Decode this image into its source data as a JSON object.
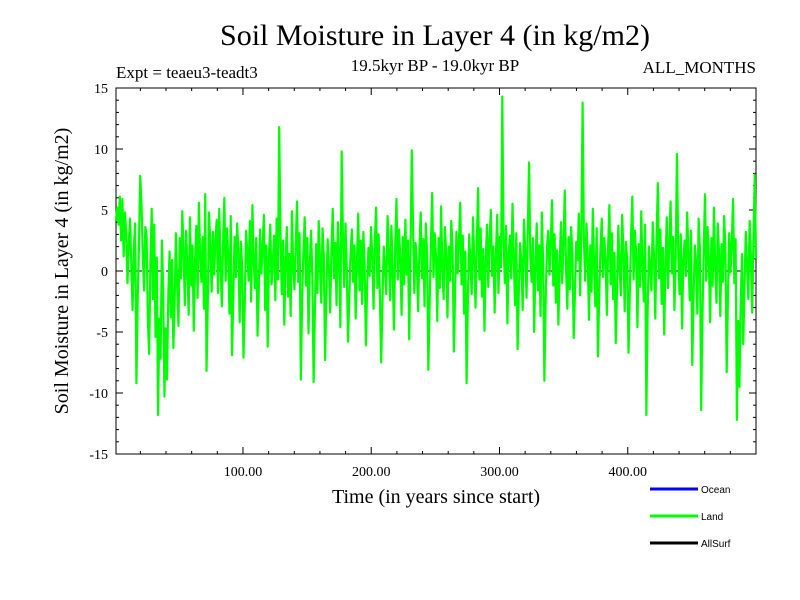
{
  "chart_data": {
    "type": "line",
    "title": "Soil Moisture in Layer 4 (in kg/m2)",
    "subtitle_left": "Expt = teaeu3-teadt3",
    "subtitle_center": "19.5kyr BP - 19.0kyr BP",
    "subtitle_right": "ALL_MONTHS",
    "xlabel": "Time (in years since start)",
    "ylabel": "Soil Moisture in Layer 4 (in kg/m2)",
    "xlim": [
      1,
      500
    ],
    "ylim": [
      -15,
      15
    ],
    "x_ticks": [
      100,
      200,
      300,
      400
    ],
    "x_tick_labels": [
      "100.00",
      "200.00",
      "300.00",
      "400.00"
    ],
    "y_ticks": [
      -15,
      -10,
      -5,
      0,
      5,
      10,
      15
    ],
    "y_tick_labels": [
      "-15",
      "-10",
      "-5",
      "0",
      "5",
      "10",
      "15"
    ],
    "zero_line": true,
    "series": [
      {
        "name": "Land",
        "color": "#00ff00",
        "values": [
          4.1,
          5.2,
          3.8,
          6.1,
          2.5,
          5.9,
          1.2,
          4.8,
          3.1,
          -1.0,
          2.2,
          4.3,
          0.5,
          -3.2,
          1.8,
          3.9,
          -9.2,
          -2.5,
          2.1,
          7.8,
          5.5,
          1.3,
          -1.6,
          3.6,
          2.9,
          -4.1,
          -6.8,
          0.7,
          5.1,
          -2.3,
          3.8,
          -5.4,
          1.1,
          -11.8,
          -3.9,
          -7.2,
          2.5,
          -1.5,
          -10.3,
          -4.7,
          -8.9,
          -2.1,
          1.6,
          -3.8,
          0.9,
          -6.3,
          -2.4,
          3.1,
          -1.3,
          -4.5,
          2.7,
          -0.6,
          4.9,
          1.5,
          -2.8,
          3.3,
          0.2,
          -3.6,
          4.4,
          -1.2,
          2.1,
          -4.9,
          0.8,
          3.7,
          -2.2,
          5.6,
          1.4,
          -0.9,
          2.8,
          -3.1,
          6.3,
          -8.2,
          -2.6,
          4.8,
          1.9,
          -1.7,
          3.2,
          -0.3,
          2.6,
          4.2,
          -1.8,
          5.1,
          0.4,
          -2.9,
          2.3,
          6.0,
          -0.8,
          3.5,
          1.2,
          -3.5,
          4.5,
          -6.9,
          -2.1,
          2.8,
          -0.5,
          3.9,
          1.7,
          -4.2,
          2.4,
          0.1,
          -7.1,
          -2.7,
          3.3,
          1.5,
          -0.8,
          4.1,
          -2.5,
          5.4,
          0.9,
          -1.4,
          2.7,
          -5.3,
          -1.6,
          3.4,
          -0.2,
          1.9,
          4.6,
          -3.2,
          2.1,
          -6.2,
          1.3,
          3.8,
          -1.1,
          0.6,
          2.9,
          -2.4,
          4.3,
          -0.7,
          11.8,
          3.1,
          -1.9,
          2.5,
          -4.4,
          0.8,
          3.6,
          -2.1,
          1.4,
          -3.7,
          4.9,
          0.3,
          -1.5,
          2.2,
          5.7,
          -0.9,
          3.1,
          -8.9,
          -2.3,
          1.6,
          4.4,
          -1.2,
          2.7,
          -5.1,
          0.5,
          3.3,
          -0.4,
          -9.1,
          -3.3,
          2.2,
          -1.8,
          4.1,
          0.7,
          -2.6,
          3.5,
          1.2,
          -7.3,
          -1.9,
          2.6,
          0.4,
          -3.4,
          1.8,
          5.1,
          -0.6,
          2.3,
          -2.8,
          4.0,
          1.1,
          -4.6,
          9.8,
          2.7,
          -1.3,
          3.9,
          0.2,
          -5.8,
          -2.2,
          1.5,
          3.4,
          -0.9,
          2.1,
          -3.9,
          0.8,
          4.7,
          -1.6,
          2.5,
          -2.7,
          3.2,
          0.6,
          -6.1,
          -1.2,
          1.9,
          -0.4,
          3.6,
          1.3,
          -3.1,
          2.4,
          5.2,
          -1.4,
          3.0,
          -2.0,
          -7.5,
          -2.6,
          2.0,
          0.3,
          -1.9,
          4.5,
          1.6,
          -2.4,
          3.7,
          0.1,
          -4.8,
          2.1,
          5.9,
          -0.7,
          3.4,
          1.0,
          -3.6,
          2.8,
          -1.1,
          4.2,
          -0.3,
          2.5,
          -5.6,
          1.7,
          9.9,
          3.6,
          -1.8,
          2.3,
          0.5,
          -3.3,
          1.9,
          4.8,
          -0.6,
          2.6,
          -2.9,
          3.9,
          1.4,
          -8.1,
          -2.7,
          2.2,
          6.4,
          -0.5,
          3.1,
          1.2,
          -4.1,
          2.7,
          -1.4,
          5.3,
          0.2,
          -2.3,
          3.6,
          1.5,
          -3.8,
          2.0,
          -0.8,
          4.1,
          1.8,
          -6.6,
          -1.7,
          3.2,
          -0.2,
          2.4,
          5.6,
          -1.1,
          2.9,
          -3.5,
          1.6,
          -9.2,
          -2.4,
          3.0,
          0.6,
          -1.9,
          4.4,
          1.1,
          -3.0,
          2.2,
          6.8,
          -0.7,
          3.5,
          -2.1,
          1.8,
          -4.9,
          0.9,
          3.8,
          -1.3,
          2.6,
          5.0,
          -0.4,
          2.0,
          -3.4,
          1.3,
          4.6,
          -1.8,
          2.8,
          0.3,
          14.3,
          2.5,
          -1.0,
          3.7,
          -4.3,
          1.4,
          2.9,
          -0.6,
          5.5,
          1.0,
          -2.8,
          3.1,
          -6.4,
          -1.5,
          2.3,
          0.7,
          -3.2,
          4.2,
          1.6,
          -2.2,
          3.4,
          8.9,
          1.1,
          -0.9,
          2.7,
          -5.0,
          0.4,
          3.9,
          -1.6,
          2.1,
          -3.7,
          4.8,
          0.8,
          -9.0,
          -2.5,
          1.9,
          3.3,
          -0.3,
          2.5,
          5.8,
          -1.2,
          3.0,
          -2.6,
          1.7,
          -4.4,
          0.5,
          4.0,
          -1.0,
          2.3,
          6.6,
          0.1,
          -3.1,
          2.8,
          -1.5,
          3.6,
          1.2,
          -5.5,
          -1.8,
          2.4,
          0.9,
          4.7,
          -2.0,
          3.2,
          13.8,
          2.6,
          -0.8,
          3.9,
          1.3,
          -4.0,
          2.1,
          -1.7,
          5.1,
          0.6,
          -2.9,
          3.5,
          -7.0,
          -2.1,
          1.8,
          4.3,
          -0.5,
          2.7,
          1.0,
          -3.6,
          2.0,
          5.4,
          -1.1,
          3.1,
          -2.3,
          1.5,
          -5.9,
          -1.4,
          3.7,
          0.3,
          -2.0,
          4.6,
          1.7,
          -3.3,
          2.4,
          0.8,
          -6.7,
          -2.0,
          2.9,
          6.1,
          -0.7,
          3.3,
          1.4,
          -4.6,
          2.2,
          -1.3,
          4.9,
          0.5,
          -2.5,
          3.8,
          -11.8,
          -3.4,
          2.0,
          0.2,
          -1.6,
          4.0,
          1.1,
          -3.9,
          2.6,
          7.2,
          -0.6,
          3.4,
          -2.7,
          1.9,
          -5.2,
          0.7,
          4.4,
          -1.4,
          2.3,
          5.7,
          -0.2,
          2.8,
          -3.2,
          1.2,
          9.6,
          1.6,
          -1.9,
          3.0,
          -4.7,
          0.9,
          2.5,
          -0.4,
          4.8,
          1.3,
          -2.4,
          3.3,
          -7.7,
          -2.3,
          2.1,
          0.6,
          -3.5,
          4.3,
          1.8,
          -11.4,
          -3.6,
          1.7,
          6.3,
          -0.8,
          3.6,
          1.0,
          -4.2,
          2.7,
          -1.2,
          5.2,
          0.4,
          -2.6,
          3.9,
          1.5,
          -3.7,
          2.2,
          -0.9,
          4.5,
          1.9,
          -8.3,
          -2.1,
          3.1,
          -0.1,
          2.3,
          5.9,
          -1.0,
          2.6,
          -12.2,
          -4.1,
          -9.5,
          -2.8,
          1.4,
          -6.0,
          -1.1,
          3.2,
          0.5,
          -2.3,
          4.1,
          1.2,
          -3.4,
          2.6,
          7.9,
          1.0
        ]
      }
    ],
    "legend": [
      {
        "name": "Ocean",
        "label": "Ocean",
        "color": "#0000ff"
      },
      {
        "name": "Land",
        "label": "Land",
        "color": "#00ff00"
      },
      {
        "name": "AllSurf",
        "label": "AllSurf",
        "color": "#000000"
      }
    ]
  }
}
